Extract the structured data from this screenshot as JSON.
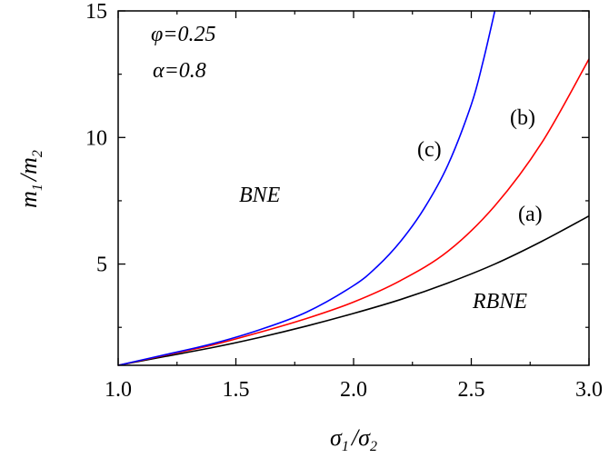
{
  "chart_data": {
    "type": "line",
    "title": "",
    "xlabel": {
      "base1": "σ",
      "sub1": "1",
      "sep": "/",
      "base2": "σ",
      "sub2": "2"
    },
    "ylabel": {
      "base1": "m",
      "sub1": "1",
      "sep": "/",
      "base2": "m",
      "sub2": "2"
    },
    "xlim": [
      1.0,
      3.0
    ],
    "ylim": [
      1.0,
      15.0
    ],
    "xticks": [
      1.0,
      1.5,
      2.0,
      2.5,
      3.0
    ],
    "xtick_labels": [
      "1.0",
      "1.5",
      "2.0",
      "2.5",
      "3.0"
    ],
    "yticks": [
      5,
      10,
      15
    ],
    "ytick_labels": [
      "5",
      "10",
      "15"
    ],
    "grid": false,
    "series": [
      {
        "label": "(a)",
        "color": "#000000",
        "x": [
          1.0,
          1.2,
          1.4,
          1.6,
          1.8,
          2.0,
          2.2,
          2.4,
          2.6,
          2.8,
          3.0
        ],
        "y": [
          1.0,
          1.35,
          1.7,
          2.1,
          2.55,
          3.05,
          3.6,
          4.25,
          5.0,
          5.9,
          6.9
        ]
      },
      {
        "label": "(b)",
        "color": "#ff0000",
        "x": [
          1.0,
          1.2,
          1.4,
          1.6,
          1.8,
          2.0,
          2.2,
          2.4,
          2.6,
          2.8,
          3.0
        ],
        "y": [
          1.0,
          1.4,
          1.8,
          2.3,
          2.85,
          3.5,
          4.35,
          5.5,
          7.3,
          9.8,
          13.1
        ]
      },
      {
        "label": "(c)",
        "color": "#0000ff",
        "x": [
          1.0,
          1.2,
          1.4,
          1.6,
          1.8,
          2.0,
          2.1,
          2.2,
          2.3,
          2.4,
          2.5,
          2.55,
          2.6
        ],
        "y": [
          1.0,
          1.42,
          1.85,
          2.4,
          3.1,
          4.15,
          4.9,
          5.9,
          7.2,
          8.9,
          11.3,
          13.0,
          15.0
        ]
      }
    ],
    "annotations": {
      "phi": "φ=0.25",
      "alpha": "α=0.8",
      "bne": "BNE",
      "rbne": "RBNE"
    }
  }
}
